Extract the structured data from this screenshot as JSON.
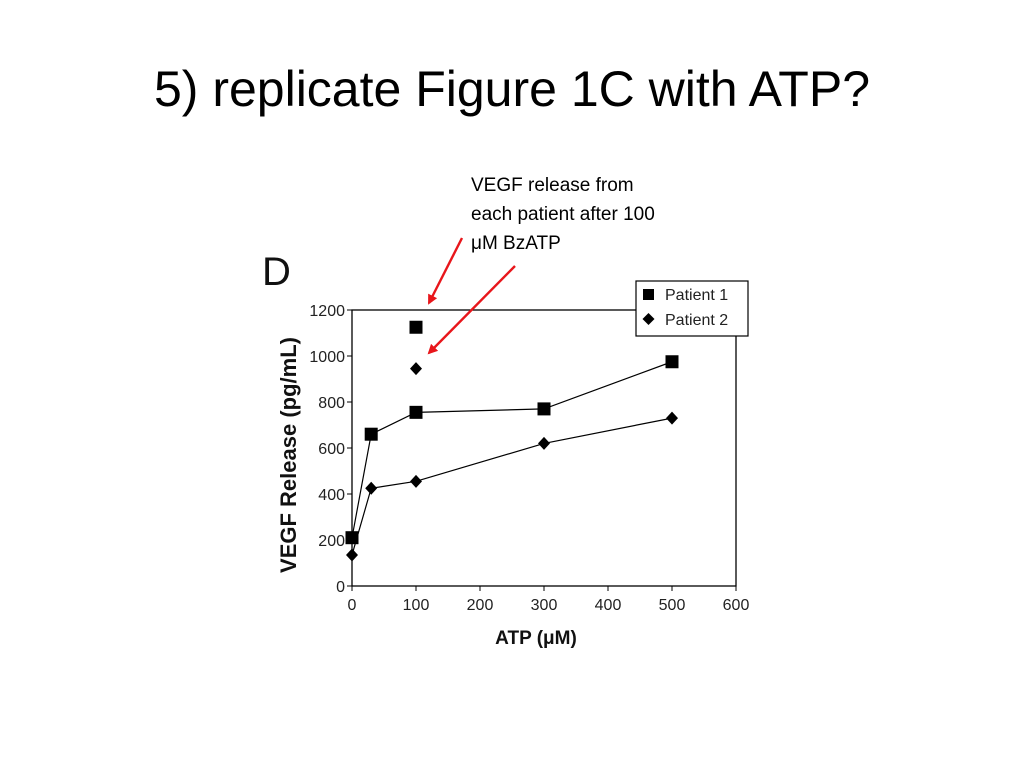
{
  "slide": {
    "title": "5) replicate Figure 1C with ATP?",
    "annotation_lines": [
      "VEGF release from",
      "each patient after 100",
      "μM BzATP"
    ],
    "arrow_color": "#e8161b"
  },
  "chart_data": {
    "type": "line",
    "panel_label": "D",
    "xlabel": "ATP (μM)",
    "ylabel": "VEGF Release (pg/mL)",
    "xlim": [
      0,
      600
    ],
    "ylim": [
      0,
      1200
    ],
    "xticks": [
      0,
      100,
      200,
      300,
      400,
      500,
      600
    ],
    "yticks": [
      0,
      200,
      400,
      600,
      800,
      1000,
      1200
    ],
    "grid": false,
    "legend_position": "top-right",
    "series": [
      {
        "name": "Patient 1",
        "marker": "square",
        "x": [
          0,
          30,
          100,
          300,
          500
        ],
        "y": [
          210,
          660,
          755,
          770,
          975
        ]
      },
      {
        "name": "Patient 2",
        "marker": "diamond",
        "x": [
          0,
          30,
          100,
          300,
          500
        ],
        "y": [
          135,
          425,
          455,
          620,
          730
        ]
      }
    ],
    "bzatp_points": [
      {
        "series": "Patient 1",
        "marker": "square",
        "x": 100,
        "y": 1125
      },
      {
        "series": "Patient 2",
        "marker": "diamond",
        "x": 100,
        "y": 945
      }
    ]
  }
}
